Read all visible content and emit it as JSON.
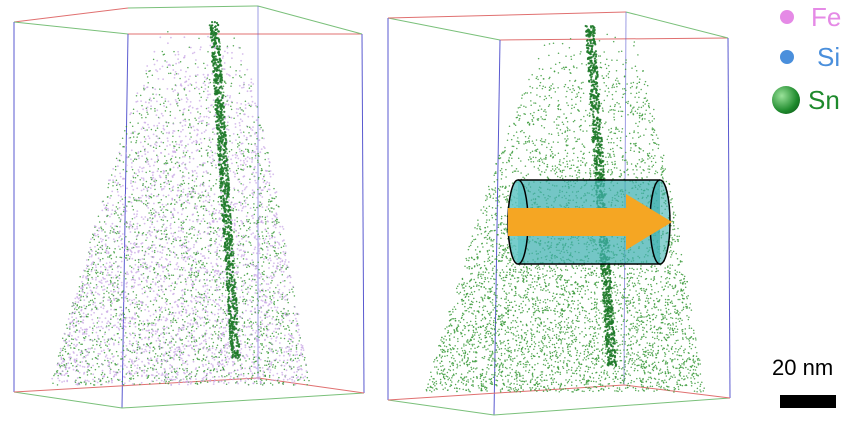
{
  "legend": {
    "items": [
      {
        "label": "Fe",
        "color": "#e58ae6"
      },
      {
        "label": "Si",
        "color": "#4a8fdc"
      },
      {
        "label": "Sn",
        "color": "#1e8a2c"
      }
    ]
  },
  "scale_bar": {
    "label": "20 nm"
  },
  "colors": {
    "fe_atom": "#c9a8e6",
    "sn_atom": "#3a9a3a",
    "sn_dense": "#1f7a2a",
    "cylinder": "#3fb0b0",
    "arrow": "#f5a623",
    "box_red": "#e07070",
    "box_blue": "#5a5ad0",
    "box_green": "#7ac07a"
  },
  "icons": [
    "fe-atom-icon",
    "si-atom-icon",
    "sn-atom-icon",
    "analysis-cylinder",
    "direction-arrow"
  ]
}
